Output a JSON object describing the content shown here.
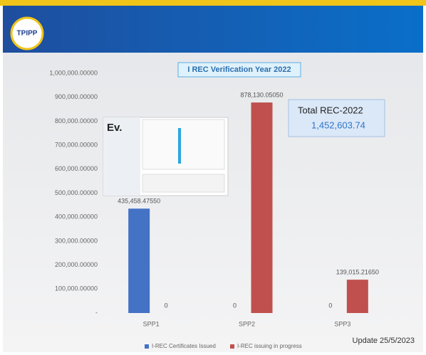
{
  "chart_data": {
    "type": "bar",
    "logo": "TPIPP",
    "title": "I REC Verification Year 2022",
    "inset_label": "Ev.",
    "total_label": "Total REC-2022",
    "total_value": "1,452,603.74",
    "update_note": "Update 25/5/2023",
    "categories": [
      "SPP1",
      "SPP2",
      "SPP3"
    ],
    "series": [
      {
        "name": "I-REC Certificates Issued",
        "color": "#4472c4",
        "values": [
          435458.4755,
          0,
          0
        ],
        "value_labels": [
          "435,458.47550",
          "0",
          "0"
        ]
      },
      {
        "name": "I-REC issuing in progress",
        "color": "#c0504d",
        "values": [
          0,
          878130.0505,
          139015.2165
        ],
        "value_labels": [
          "0",
          "878,130.05050",
          "139,015.21650"
        ]
      }
    ],
    "ylim": [
      0,
      1000000
    ],
    "yticks": [
      {
        "value": 0,
        "label": "-"
      },
      {
        "value": 100000,
        "label": "100,000.00000"
      },
      {
        "value": 200000,
        "label": "200,000.00000"
      },
      {
        "value": 300000,
        "label": "300,000.00000"
      },
      {
        "value": 400000,
        "label": "400,000.00000"
      },
      {
        "value": 500000,
        "label": "500,000.00000"
      },
      {
        "value": 600000,
        "label": "600,000.00000"
      },
      {
        "value": 700000,
        "label": "700,000.00000"
      },
      {
        "value": 800000,
        "label": "800,000.00000"
      },
      {
        "value": 900000,
        "label": "900,000.00000"
      },
      {
        "value": 1000000,
        "label": "1,000,000.00000"
      }
    ],
    "grid": false
  }
}
